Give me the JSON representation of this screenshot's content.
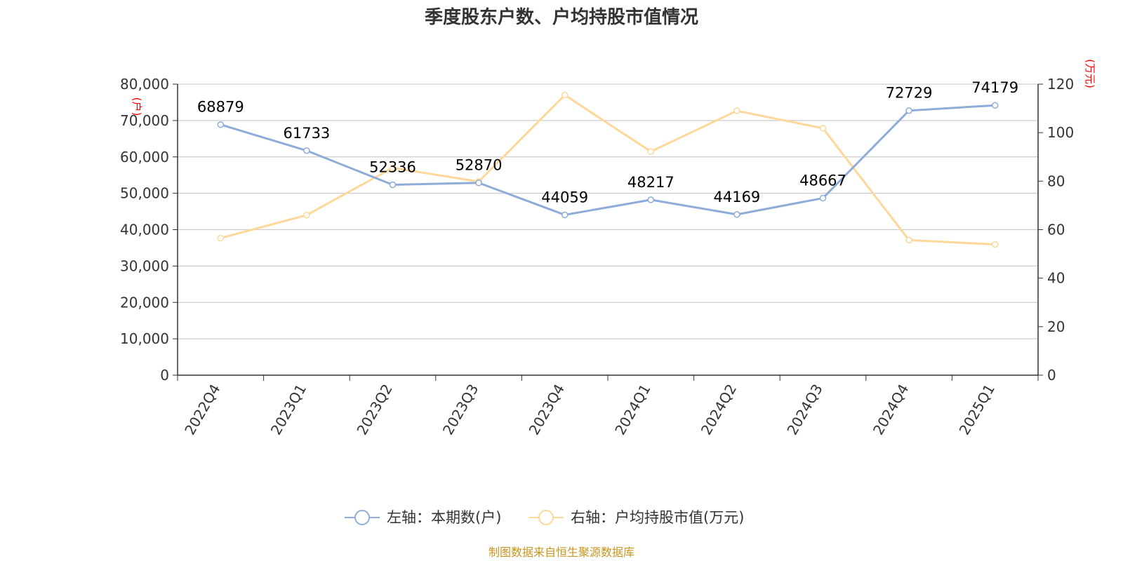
{
  "chart_data": {
    "type": "line",
    "title": "季度股东户数、户均持股市值情况",
    "categories": [
      "2022Q4",
      "2023Q1",
      "2023Q2",
      "2023Q3",
      "2023Q4",
      "2024Q1",
      "2024Q2",
      "2024Q3",
      "2024Q4",
      "2025Q1"
    ],
    "series": [
      {
        "name": "左轴：本期数(户)",
        "axis": "left",
        "color": "#8eacd8",
        "values": [
          68879,
          61733,
          52336,
          52870,
          44059,
          48217,
          44169,
          48667,
          72729,
          74179
        ],
        "labels": [
          "68879",
          "61733",
          "52336",
          "52870",
          "44059",
          "48217",
          "44169",
          "48667",
          "72729",
          "74179"
        ]
      },
      {
        "name": "右轴：户均持股市值(万元)",
        "axis": "right",
        "color": "#fdd89a",
        "values": [
          56.5,
          66.0,
          85.5,
          79.8,
          115.5,
          92.2,
          109.0,
          101.8,
          55.7,
          53.9
        ]
      }
    ],
    "left_axis": {
      "unit": "(户)",
      "ylim": [
        0,
        80000
      ],
      "ticks": [
        0,
        10000,
        20000,
        30000,
        40000,
        50000,
        60000,
        70000,
        80000
      ],
      "tick_labels": [
        "0",
        "10,000",
        "20,000",
        "30,000",
        "40,000",
        "50,000",
        "60,000",
        "70,000",
        "80,000"
      ]
    },
    "right_axis": {
      "unit": "(万元)",
      "ylim": [
        0,
        120
      ],
      "ticks": [
        0,
        20,
        40,
        60,
        80,
        100,
        120
      ],
      "tick_labels": [
        "0",
        "20",
        "40",
        "60",
        "80",
        "100",
        "120"
      ]
    },
    "grid": true,
    "legend_position": "bottom-center"
  },
  "source_text": "制图数据来自恒生聚源数据库"
}
